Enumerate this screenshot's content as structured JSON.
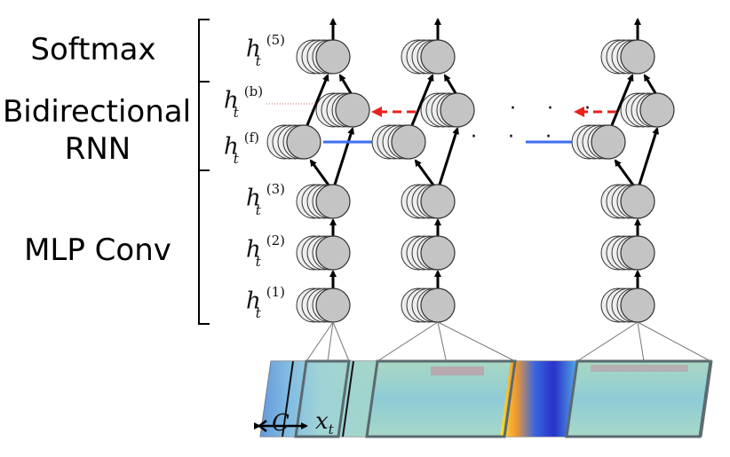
{
  "groups": {
    "softmax": "Softmax",
    "bidir_line1": "Bidirectional",
    "bidir_line2": "RNN",
    "mlp": "MLP Conv"
  },
  "layer_labels": {
    "h5": {
      "base": "h",
      "sub": "t",
      "sup": "(5)"
    },
    "hb": {
      "base": "h",
      "sub": "t",
      "sup": "(b)"
    },
    "hf": {
      "base": "h",
      "sub": "t",
      "sup": "(f)"
    },
    "h3": {
      "base": "h",
      "sub": "t",
      "sup": "(3)"
    },
    "h2": {
      "base": "h",
      "sub": "t",
      "sup": "(2)"
    },
    "h1": {
      "base": "h",
      "sub": "t",
      "sup": "(1)"
    }
  },
  "ellipsis": "· · ·",
  "input_labels": {
    "context": "C",
    "frame": "x",
    "frame_sub": "t"
  },
  "colors": {
    "node_fill": "#c4c4c4",
    "node_back": "#eeeeee",
    "forward_arrow": "#3b6ff5",
    "backward_arrow": "#e8221c",
    "frame_border": "#5a6a70"
  }
}
